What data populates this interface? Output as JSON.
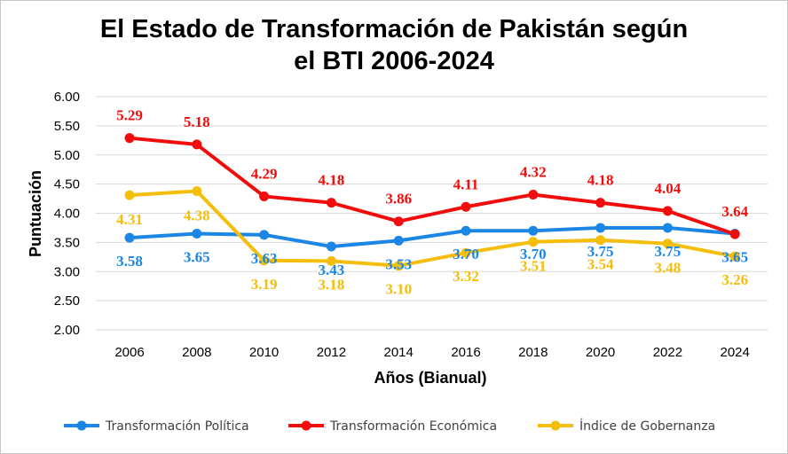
{
  "chart_data": {
    "type": "line",
    "title_line1": "El Estado de Transformación de Pakistán según",
    "title_line2": "el BTI 2006-2024",
    "xlabel": "Años (Bianual)",
    "ylabel": "Puntuación",
    "ylim": [
      2.0,
      6.0
    ],
    "y_ticks": [
      "2.00",
      "2.50",
      "3.00",
      "3.50",
      "4.00",
      "4.50",
      "5.00",
      "5.50",
      "6.00"
    ],
    "categories": [
      "2006",
      "2008",
      "2010",
      "2012",
      "2014",
      "2016",
      "2018",
      "2020",
      "2022",
      "2024"
    ],
    "grid": true,
    "legend_position": "bottom",
    "series": [
      {
        "name": "Transformación Política",
        "color": "#1b86e3",
        "values": [
          3.58,
          3.65,
          3.63,
          3.43,
          3.53,
          3.7,
          3.7,
          3.75,
          3.75,
          3.65
        ],
        "labels": [
          "3.58",
          "3.65",
          "3.63",
          "3.43",
          "3.53",
          "3.70",
          "3.70",
          "3.75",
          "3.75",
          "3.65"
        ]
      },
      {
        "name": "Transformación Económica",
        "color": "#f20d0d",
        "values": [
          5.29,
          5.18,
          4.29,
          4.18,
          3.86,
          4.11,
          4.32,
          4.18,
          4.04,
          3.64
        ],
        "labels": [
          "5.29",
          "5.18",
          "4.29",
          "4.18",
          "3.86",
          "4.11",
          "4.32",
          "4.18",
          "4.04",
          "3.64"
        ]
      },
      {
        "name": "Índice de Gobernanza",
        "color": "#f5be0a",
        "values": [
          4.31,
          4.38,
          3.19,
          3.18,
          3.1,
          3.32,
          3.51,
          3.54,
          3.48,
          3.26
        ],
        "labels": [
          "4.31",
          "4.38",
          "3.19",
          "3.18",
          "3.10",
          "3.32",
          "3.51",
          "3.54",
          "3.48",
          "3.26"
        ]
      }
    ]
  }
}
